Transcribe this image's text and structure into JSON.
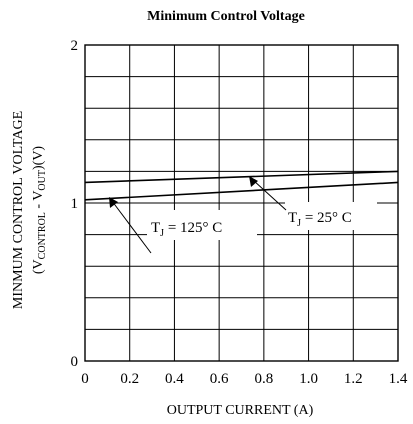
{
  "chart_data": {
    "type": "line",
    "title": "Minimum Control Voltage",
    "xlabel": "OUTPUT CURRENT (A)",
    "ylabel_line1": "MINMUM CONTROL VOLTAGE",
    "ylabel_line2": {
      "open": "(V",
      "control_sub": "CONTROL",
      "mid": " - V",
      "out_sub": "OUT",
      "close": ")(V)"
    },
    "xlim": [
      0,
      1.4
    ],
    "ylim": [
      0,
      2
    ],
    "x_ticks": [
      "0",
      "0.2",
      "0.4",
      "0.6",
      "0.8",
      "1.0",
      "1.2",
      "1.4"
    ],
    "y_ticks": [
      "0",
      "1",
      "2"
    ],
    "grid": true,
    "series": [
      {
        "label_main": "T",
        "label_sub": "J",
        "label_rest": " = 25° C",
        "x": [
          0,
          1.4
        ],
        "y": [
          1.13,
          1.2
        ]
      },
      {
        "label_main": "T",
        "label_sub": "J",
        "label_rest": " = 125° C",
        "x": [
          0,
          1.4
        ],
        "y": [
          1.02,
          1.13
        ]
      }
    ]
  }
}
